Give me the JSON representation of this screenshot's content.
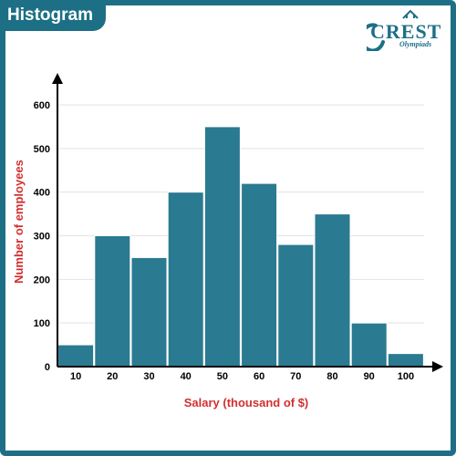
{
  "header": {
    "title": "Histogram",
    "logo_text": "CREST",
    "logo_subtext": "Olympiads"
  },
  "colors": {
    "brand": "#1d6f86",
    "bar": "#2a7a91",
    "axis_label": "#d32f2f",
    "grid": "#e3e3e3"
  },
  "chart_data": {
    "type": "bar",
    "title": "Histogram",
    "xlabel": "Salary (thousand of $)",
    "ylabel": "Number of employees",
    "categories": [
      "10",
      "20",
      "30",
      "40",
      "50",
      "60",
      "70",
      "80",
      "90",
      "100"
    ],
    "values": [
      50,
      300,
      250,
      400,
      550,
      420,
      280,
      350,
      100,
      30
    ],
    "yticks": [
      "0",
      "100",
      "200",
      "300",
      "400",
      "500",
      "600"
    ],
    "ylim": [
      0,
      700
    ],
    "grid": true,
    "legend": "none"
  }
}
